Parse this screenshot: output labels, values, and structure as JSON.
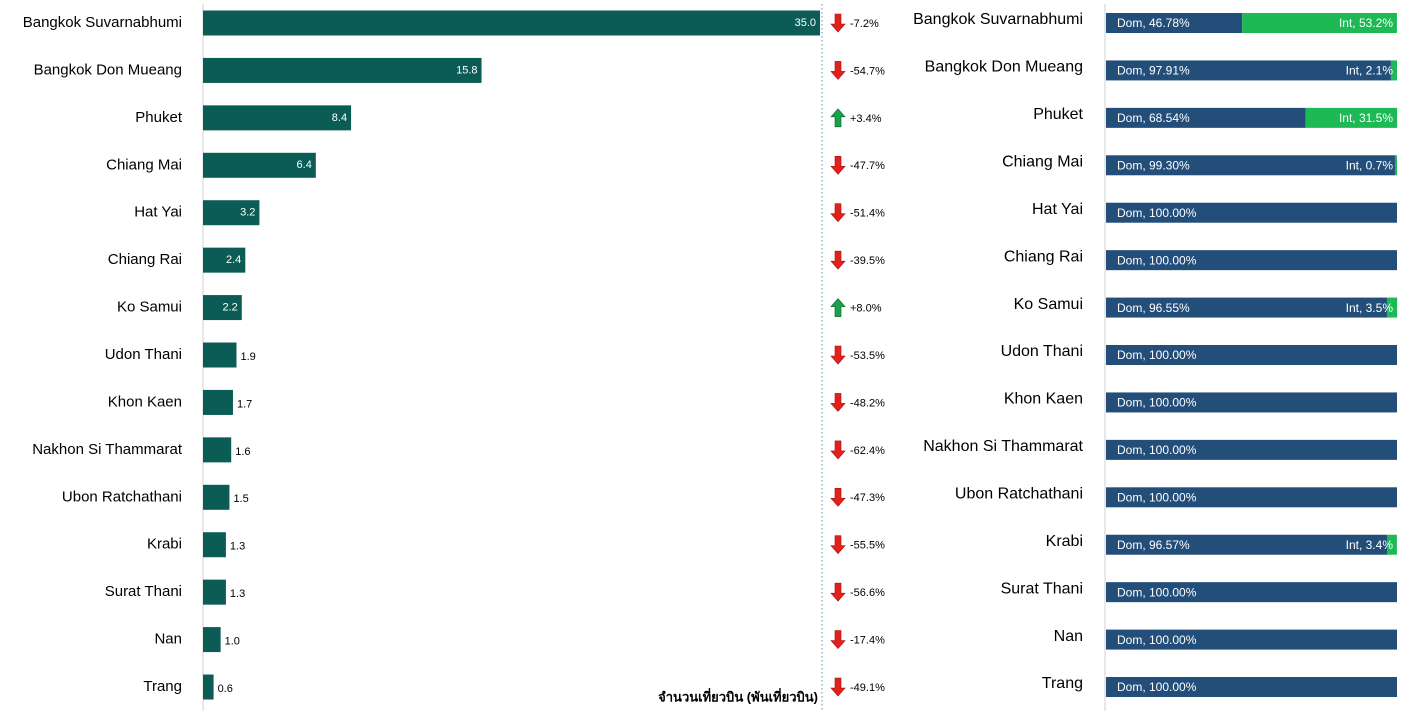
{
  "chart_data": [
    {
      "type": "bar",
      "categories": [
        "Bangkok Suvarnabhumi",
        "Bangkok Don Mueang",
        "Phuket",
        "Chiang Mai",
        "Hat Yai",
        "Chiang Rai",
        "Ko Samui",
        "Udon Thani",
        "Khon Kaen",
        "Nakhon Si Thammarat",
        "Ubon Ratchathani",
        "Krabi",
        "Surat Thani",
        "Nan",
        "Trang"
      ],
      "values": [
        35.0,
        15.8,
        8.4,
        6.4,
        3.2,
        2.4,
        2.2,
        1.9,
        1.7,
        1.6,
        1.5,
        1.3,
        1.3,
        1.0,
        0.6
      ],
      "value_labels": [
        "35.0",
        "15.8",
        "8.4",
        "6.4",
        "3.2",
        "2.4",
        "2.2",
        "1.9",
        "1.7",
        "1.6",
        "1.5",
        "1.3",
        "1.3",
        "1.0",
        "0.6"
      ],
      "color": "#0b5c55",
      "xlim": [
        0,
        35
      ],
      "x_label": "จำนวนเที่ยวบิน (พันเที่ยวบิน)"
    },
    {
      "type": "change",
      "values": [
        -7.2,
        -54.7,
        3.4,
        -47.7,
        -51.4,
        -39.5,
        8.0,
        -53.5,
        -48.2,
        -62.4,
        -47.3,
        -55.5,
        -56.6,
        -17.4,
        -49.1
      ],
      "value_labels": [
        "-7.2%",
        "-54.7%",
        "+3.4%",
        "-47.7%",
        "-51.4%",
        "-39.5%",
        "+8.0%",
        "-53.5%",
        "-48.2%",
        "-62.4%",
        "-47.3%",
        "-55.5%",
        "-56.6%",
        "-17.4%",
        "-49.1%"
      ],
      "up_color": "#17a34a",
      "down_color": "#e3201b"
    },
    {
      "type": "stacked_bar",
      "categories": [
        "Bangkok Suvarnabhumi",
        "Bangkok Don Mueang",
        "Phuket",
        "Chiang Mai",
        "Hat Yai",
        "Chiang Rai",
        "Ko Samui",
        "Udon Thani",
        "Khon Kaen",
        "Nakhon Si Thammarat",
        "Ubon Ratchathani",
        "Krabi",
        "Surat Thani",
        "Nan",
        "Trang"
      ],
      "xlim": [
        0,
        100
      ],
      "series": [
        {
          "color": "#234e7a",
          "values": [
            46.78,
            97.91,
            68.54,
            99.3,
            100.0,
            100.0,
            96.55,
            100.0,
            100.0,
            100.0,
            100.0,
            96.57,
            100.0,
            100.0,
            100.0
          ],
          "value_labels": [
            "Dom, 46.78%",
            "Dom, 97.91%",
            "Dom, 68.54%",
            "Dom, 99.30%",
            "Dom, 100.00%",
            "Dom, 100.00%",
            "Dom, 96.55%",
            "Dom, 100.00%",
            "Dom, 100.00%",
            "Dom, 100.00%",
            "Dom, 100.00%",
            "Dom, 96.57%",
            "Dom, 100.00%",
            "Dom, 100.00%",
            "Dom, 100.00%"
          ]
        },
        {
          "color": "#1cb954",
          "values": [
            53.2,
            2.1,
            31.5,
            0.7,
            null,
            null,
            3.5,
            null,
            null,
            null,
            null,
            3.4,
            null,
            null,
            null
          ],
          "value_labels": [
            "Int, 53.2%",
            "Int, 2.1%",
            "Int, 31.5%",
            "Int, 0.7%",
            null,
            null,
            "Int, 3.5%",
            null,
            null,
            null,
            null,
            "Int, 3.4%",
            null,
            null,
            null
          ]
        }
      ]
    }
  ]
}
